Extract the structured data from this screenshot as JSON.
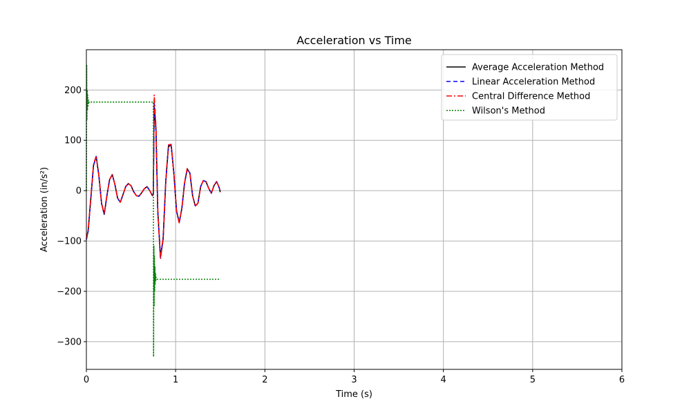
{
  "chart_data": {
    "type": "line",
    "title": "Acceleration vs Time",
    "xlabel": "Time (s)",
    "ylabel": "Acceleration (in/s²)",
    "xlim": [
      0,
      6
    ],
    "ylim": [
      -355,
      280
    ],
    "xticks": [
      0,
      1,
      2,
      3,
      4,
      5,
      6
    ],
    "yticks": [
      -300,
      -200,
      -100,
      0,
      100,
      200
    ],
    "ytick_labels": [
      "−300",
      "−200",
      "−100",
      "0",
      "100",
      "200"
    ],
    "grid": true,
    "legend_position": "top-right",
    "series": [
      {
        "name": "Average Acceleration Method",
        "color": "#000000",
        "dash": "solid",
        "x": [
          0,
          0.02,
          0.05,
          0.08,
          0.11,
          0.14,
          0.17,
          0.2,
          0.23,
          0.26,
          0.29,
          0.32,
          0.35,
          0.38,
          0.41,
          0.44,
          0.47,
          0.5,
          0.53,
          0.56,
          0.59,
          0.62,
          0.65,
          0.68,
          0.71,
          0.74,
          0.75,
          0.76,
          0.78,
          0.8,
          0.83,
          0.86,
          0.89,
          0.92,
          0.95,
          0.98,
          1.01,
          1.04,
          1.07,
          1.1,
          1.13,
          1.16,
          1.19,
          1.22,
          1.25,
          1.28,
          1.31,
          1.34,
          1.37,
          1.4,
          1.43,
          1.46,
          1.49,
          1.5
        ],
        "y": [
          -97,
          -80,
          -15,
          50,
          68,
          30,
          -25,
          -47,
          -10,
          22,
          32,
          12,
          -15,
          -23,
          -8,
          8,
          14,
          10,
          -2,
          -10,
          -11,
          -4,
          4,
          8,
          0,
          -10,
          -5,
          170,
          120,
          -40,
          -132,
          -95,
          20,
          88,
          90,
          35,
          -40,
          -63,
          -35,
          15,
          43,
          35,
          -10,
          -30,
          -25,
          8,
          20,
          18,
          5,
          -5,
          10,
          18,
          5,
          -3
        ]
      },
      {
        "name": "Linear Acceleration Method",
        "color": "#0000ff",
        "dash": "6,4",
        "x": [
          0,
          0.02,
          0.05,
          0.08,
          0.11,
          0.14,
          0.17,
          0.2,
          0.23,
          0.26,
          0.29,
          0.32,
          0.35,
          0.38,
          0.41,
          0.44,
          0.47,
          0.5,
          0.53,
          0.56,
          0.59,
          0.62,
          0.65,
          0.68,
          0.71,
          0.74,
          0.75,
          0.76,
          0.78,
          0.8,
          0.83,
          0.86,
          0.89,
          0.92,
          0.95,
          0.98,
          1.01,
          1.04,
          1.07,
          1.1,
          1.13,
          1.16,
          1.19,
          1.22,
          1.25,
          1.28,
          1.31,
          1.34,
          1.37,
          1.4,
          1.43,
          1.46,
          1.49,
          1.5
        ],
        "y": [
          -97,
          -80,
          -15,
          50,
          68,
          30,
          -25,
          -47,
          -10,
          22,
          32,
          12,
          -15,
          -23,
          -8,
          8,
          14,
          10,
          -2,
          -10,
          -11,
          -4,
          4,
          8,
          0,
          -10,
          -5,
          175,
          122,
          -40,
          -134,
          -96,
          20,
          90,
          91,
          35,
          -40,
          -64,
          -35,
          15,
          43,
          35,
          -10,
          -30,
          -25,
          8,
          20,
          18,
          5,
          -5,
          10,
          18,
          5,
          -3
        ]
      },
      {
        "name": "Central Difference Method",
        "color": "#ff0000",
        "dash": "8,3,2,3",
        "x": [
          0,
          0.02,
          0.05,
          0.08,
          0.11,
          0.14,
          0.17,
          0.2,
          0.23,
          0.26,
          0.29,
          0.32,
          0.35,
          0.38,
          0.41,
          0.44,
          0.47,
          0.5,
          0.53,
          0.56,
          0.59,
          0.62,
          0.65,
          0.68,
          0.71,
          0.74,
          0.75,
          0.76,
          0.78,
          0.8,
          0.83,
          0.86,
          0.89,
          0.92,
          0.95,
          0.98,
          1.01,
          1.04,
          1.07,
          1.1,
          1.13,
          1.16,
          1.19,
          1.22,
          1.25,
          1.28,
          1.31,
          1.34,
          1.37,
          1.4,
          1.43,
          1.46,
          1.49,
          1.5
        ],
        "y": [
          -95,
          -78,
          -13,
          52,
          69,
          31,
          -25,
          -46,
          -9,
          22,
          32,
          12,
          -15,
          -23,
          -8,
          8,
          14,
          10,
          -2,
          -10,
          -11,
          -4,
          4,
          8,
          0,
          -10,
          -4,
          190,
          125,
          -38,
          -136,
          -97,
          20,
          91,
          92,
          35,
          -40,
          -64,
          -35,
          15,
          44,
          35,
          -10,
          -31,
          -25,
          8,
          20,
          18,
          5,
          -5,
          10,
          18,
          5,
          -3
        ]
      },
      {
        "name": "Wilson's Method",
        "color": "#008000",
        "dash": "2,2",
        "x": [
          0,
          0.003,
          0.006,
          0.009,
          0.012,
          0.015,
          0.018,
          0.021,
          0.024,
          0.027,
          0.03,
          0.04,
          0.75,
          0.753,
          0.756,
          0.759,
          0.762,
          0.765,
          0.768,
          0.771,
          0.774,
          0.777,
          0.78,
          0.79,
          1.5
        ],
        "y": [
          0,
          250,
          140,
          200,
          160,
          190,
          168,
          182,
          172,
          178,
          175,
          176,
          176,
          -330,
          -110,
          -230,
          -130,
          -200,
          -150,
          -185,
          -165,
          -180,
          -172,
          -176,
          -176
        ]
      }
    ]
  }
}
